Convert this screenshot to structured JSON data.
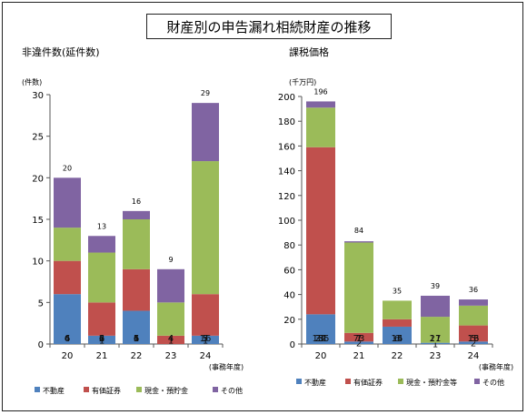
{
  "page_title": "財産別の申告漏れ相続財産の推移",
  "colors": {
    "real_estate": "#4f81bd",
    "securities": "#c0504d",
    "cash": "#9bbb59",
    "other": "#8064a2"
  },
  "chart_data": [
    {
      "type": "bar",
      "stacked": true,
      "title": "非違件数(延件数)",
      "unit_label": "(件数)",
      "xlabel": "(事務年度)",
      "categories": [
        "20",
        "21",
        "22",
        "23",
        "24"
      ],
      "ylim": [
        0,
        30
      ],
      "y_ticks": [
        0,
        5,
        10,
        15,
        20,
        25,
        30
      ],
      "totals": [
        20,
        13,
        16,
        9,
        29
      ],
      "series": [
        {
          "name": "不動産",
          "values": [
            6,
            1,
            4,
            0,
            1
          ],
          "labels": [
            "6",
            "1",
            "4",
            "",
            "1"
          ]
        },
        {
          "name": "有価証券",
          "values": [
            4,
            4,
            5,
            1,
            5
          ],
          "labels": [
            "4",
            "4",
            "5",
            "1",
            "5"
          ]
        },
        {
          "name": "現金・預貯金",
          "values": [
            4,
            6,
            6,
            4,
            16
          ],
          "labels": [
            "4",
            "6",
            "6",
            "4",
            "16"
          ]
        },
        {
          "name": "その他",
          "values": [
            6,
            2,
            1,
            4,
            7
          ],
          "labels": [
            "6",
            "2",
            "1",
            "4",
            "7"
          ]
        }
      ],
      "legend": [
        "不動産",
        "有価証券",
        "現金・預貯金",
        "その他"
      ]
    },
    {
      "type": "bar",
      "stacked": true,
      "title": "課税価格",
      "unit_label": "(千万円)",
      "xlabel": "(事務年度)",
      "categories": [
        "20",
        "21",
        "22",
        "23",
        "24"
      ],
      "ylim": [
        0,
        200
      ],
      "y_ticks": [
        0,
        20,
        40,
        60,
        80,
        100,
        120,
        140,
        160,
        180,
        200
      ],
      "totals": [
        196,
        84,
        35,
        39,
        36
      ],
      "series": [
        {
          "name": "不動産",
          "values": [
            24,
            2,
            14,
            1,
            2
          ],
          "labels": [
            "24",
            "2",
            "14",
            "1",
            "2"
          ]
        },
        {
          "name": "有価証券",
          "values": [
            135,
            7,
            6,
            0,
            13
          ],
          "labels": [
            "135",
            "7",
            "6",
            "",
            "13"
          ]
        },
        {
          "name": "現金・預貯金等",
          "values": [
            32,
            73,
            15,
            21,
            16
          ],
          "labels": [
            "32",
            "73",
            "15",
            "21",
            "16"
          ]
        },
        {
          "name": "その他",
          "values": [
            5,
            1,
            0,
            17,
            5
          ],
          "labels": [
            "5",
            "1",
            "",
            "17",
            "5"
          ]
        }
      ],
      "legend": [
        "不動産",
        "有価証券",
        "現金・預貯金等",
        "その他"
      ]
    }
  ]
}
